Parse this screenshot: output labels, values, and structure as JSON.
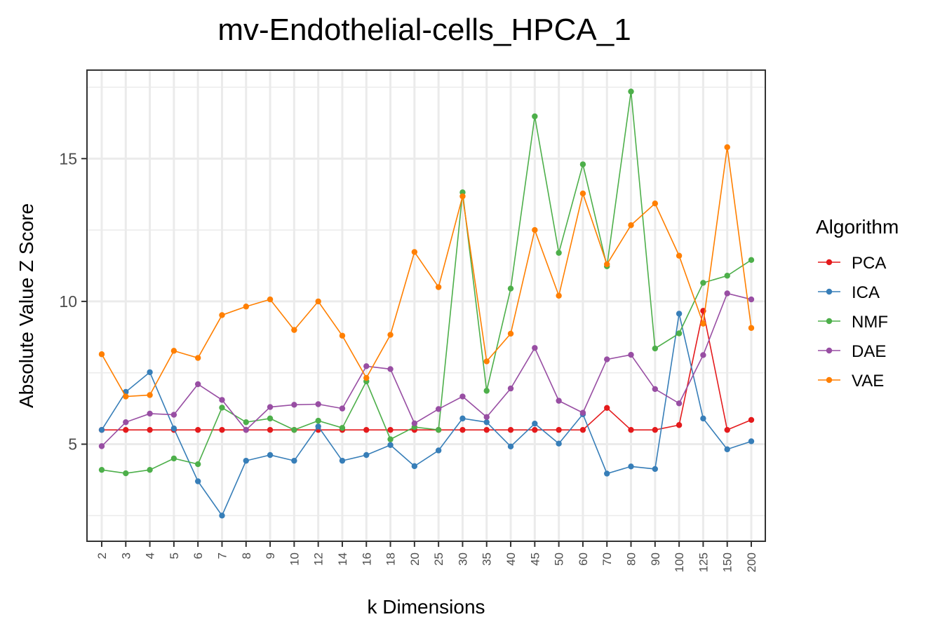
{
  "chart_data": {
    "type": "line",
    "title": "mv-Endothelial-cells_HPCA_1",
    "xlabel": "k Dimensions",
    "ylabel": "Absolute Value Z Score",
    "categories": [
      "2",
      "3",
      "4",
      "5",
      "6",
      "7",
      "8",
      "9",
      "10",
      "12",
      "14",
      "16",
      "18",
      "20",
      "25",
      "30",
      "35",
      "40",
      "45",
      "50",
      "60",
      "70",
      "80",
      "90",
      "100",
      "125",
      "150",
      "200"
    ],
    "ylim": [
      1.6,
      18.1
    ],
    "yticks": [
      5,
      10,
      15
    ],
    "legend_title": "Algorithm",
    "legend_position": "right",
    "grid": true,
    "series": [
      {
        "name": "PCA",
        "color": "#e41a1c",
        "values": [
          5.5,
          5.5,
          5.5,
          5.5,
          5.5,
          5.5,
          5.5,
          5.5,
          5.5,
          5.5,
          5.5,
          5.5,
          5.5,
          5.5,
          5.5,
          5.5,
          5.5,
          5.5,
          5.5,
          5.5,
          5.5,
          6.27,
          5.5,
          5.5,
          5.67,
          9.67,
          5.5,
          5.85
        ]
      },
      {
        "name": "ICA",
        "color": "#377eb8",
        "values": [
          5.5,
          6.83,
          7.52,
          5.55,
          3.7,
          2.5,
          4.42,
          4.62,
          4.42,
          5.62,
          4.42,
          4.62,
          4.97,
          4.23,
          4.78,
          5.9,
          5.77,
          4.92,
          5.72,
          5.02,
          6.05,
          3.97,
          4.22,
          4.13,
          9.57,
          5.9,
          4.82,
          5.1
        ]
      },
      {
        "name": "NMF",
        "color": "#4daf4a",
        "values": [
          4.1,
          3.98,
          4.1,
          4.5,
          4.3,
          6.28,
          5.77,
          5.9,
          5.5,
          5.82,
          5.57,
          7.2,
          5.17,
          5.6,
          5.5,
          13.82,
          6.87,
          10.45,
          16.48,
          11.7,
          14.8,
          11.23,
          17.35,
          8.35,
          8.88,
          10.65,
          10.9,
          11.45
        ]
      },
      {
        "name": "DAE",
        "color": "#984ea3",
        "values": [
          4.93,
          5.77,
          6.07,
          6.03,
          7.1,
          6.55,
          5.5,
          6.3,
          6.38,
          6.4,
          6.25,
          7.73,
          7.63,
          5.73,
          6.23,
          6.67,
          5.95,
          6.95,
          8.37,
          6.52,
          6.1,
          7.97,
          8.13,
          6.93,
          6.43,
          8.12,
          10.28,
          10.07
        ]
      },
      {
        "name": "VAE",
        "color": "#ff7f00",
        "values": [
          8.15,
          6.67,
          6.72,
          8.27,
          8.02,
          9.52,
          9.82,
          10.07,
          9.0,
          10.0,
          8.8,
          7.32,
          8.83,
          11.73,
          10.5,
          13.68,
          7.9,
          8.87,
          12.5,
          10.2,
          13.78,
          11.3,
          12.67,
          13.43,
          11.6,
          9.22,
          15.4,
          9.07
        ]
      }
    ]
  }
}
